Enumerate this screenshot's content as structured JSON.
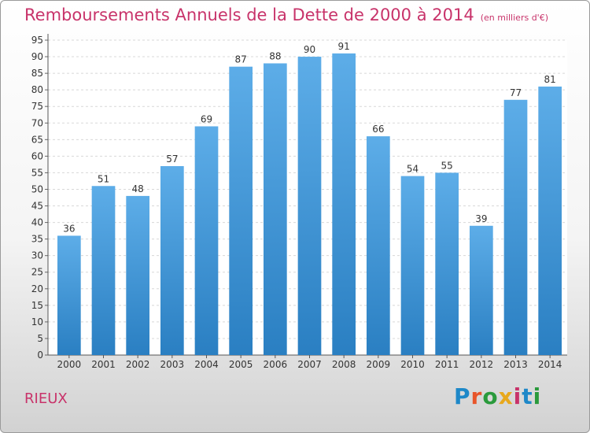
{
  "header": {
    "title": "Remboursements Annuels de la Dette de 2000 à 2014",
    "unit": "(en milliers d'€)"
  },
  "footer": {
    "commune": "RIEUX",
    "logo_text": "Proxiti"
  },
  "colors": {
    "title": "#c8336a",
    "bar_top": "#5dade8",
    "bar_bottom": "#2a7fc2",
    "logo": [
      "#1e88c8",
      "#e8552a",
      "#2a9a3c",
      "#e8a81c",
      "#c8336a",
      "#1e88c8",
      "#2a9a3c"
    ]
  },
  "chart_data": {
    "type": "bar",
    "categories": [
      "2000",
      "2001",
      "2002",
      "2003",
      "2004",
      "2005",
      "2006",
      "2007",
      "2008",
      "2009",
      "2010",
      "2011",
      "2012",
      "2013",
      "2014"
    ],
    "values": [
      36,
      51,
      48,
      57,
      69,
      87,
      88,
      90,
      91,
      66,
      54,
      55,
      39,
      77,
      81
    ],
    "data_labels": [
      "36",
      "51",
      "48",
      "57",
      "69",
      "87",
      "88",
      "90",
      "91",
      "66",
      "54",
      "55",
      "39",
      "77",
      "81"
    ],
    "yticks": [
      "0",
      "5",
      "10",
      "15",
      "20",
      "25",
      "30",
      "35",
      "40",
      "45",
      "50",
      "55",
      "60",
      "65",
      "70",
      "75",
      "80",
      "85",
      "90",
      "95"
    ],
    "ylim": [
      0,
      95
    ],
    "grid": true,
    "legend": "none"
  }
}
